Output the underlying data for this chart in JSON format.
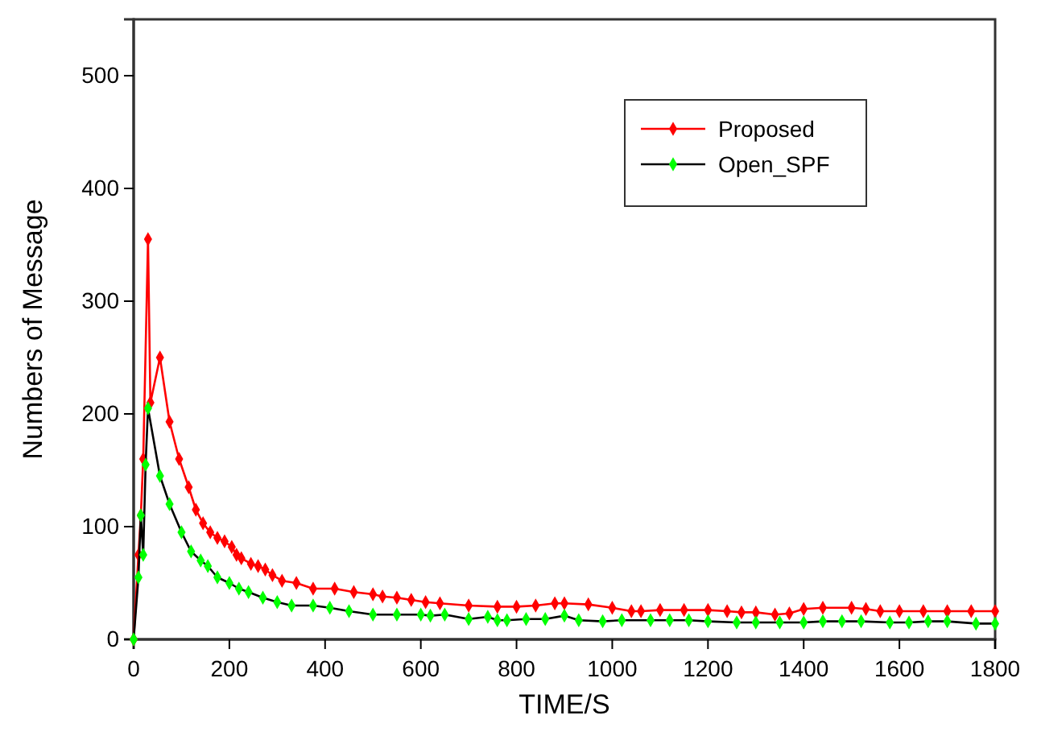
{
  "chart_data": {
    "type": "line",
    "xlabel": "TIME/S",
    "ylabel": "Numbers of Message",
    "xlim": [
      0,
      1800
    ],
    "xticks": [
      0,
      200,
      400,
      600,
      800,
      1000,
      1200,
      1400,
      1600,
      1800
    ],
    "ylim": [
      0,
      550
    ],
    "yticks": [
      0,
      100,
      200,
      300,
      400,
      500
    ],
    "grid": false,
    "legend": "top right",
    "marker": "diamond",
    "line_style": "solid",
    "series": [
      {
        "name": "Proposed",
        "color": "#ff0000",
        "x": [
          0,
          10,
          15,
          20,
          30,
          35,
          55,
          75,
          95,
          115,
          130,
          145,
          160,
          175,
          190,
          205,
          215,
          225,
          245,
          260,
          275,
          290,
          310,
          340,
          375,
          420,
          460,
          500,
          520,
          550,
          580,
          610,
          640,
          700,
          760,
          800,
          840,
          880,
          900,
          950,
          1000,
          1040,
          1060,
          1100,
          1150,
          1200,
          1240,
          1270,
          1300,
          1340,
          1370,
          1400,
          1440,
          1500,
          1530,
          1560,
          1600,
          1650,
          1700,
          1750,
          1800
        ],
        "values": [
          0,
          75,
          110,
          160,
          355,
          210,
          250,
          193,
          160,
          135,
          115,
          103,
          95,
          90,
          87,
          82,
          75,
          72,
          67,
          65,
          62,
          57,
          52,
          50,
          45,
          45,
          42,
          40,
          38,
          37,
          35,
          33,
          32,
          30,
          29,
          29,
          30,
          32,
          32,
          31,
          28,
          25,
          25,
          26,
          26,
          26,
          25,
          24,
          24,
          22,
          23,
          27,
          28,
          28,
          27,
          25,
          25,
          25,
          25,
          25,
          25
        ]
      },
      {
        "name": "Open_SPF",
        "color": "#00ff00",
        "x": [
          0,
          10,
          15,
          20,
          25,
          30,
          55,
          75,
          100,
          120,
          140,
          155,
          175,
          200,
          220,
          240,
          270,
          300,
          330,
          375,
          410,
          450,
          500,
          550,
          600,
          620,
          650,
          700,
          740,
          760,
          780,
          820,
          860,
          900,
          930,
          980,
          1020,
          1080,
          1120,
          1160,
          1200,
          1260,
          1300,
          1350,
          1400,
          1440,
          1480,
          1520,
          1580,
          1620,
          1660,
          1700,
          1760,
          1800
        ],
        "values": [
          0,
          55,
          110,
          75,
          155,
          205,
          145,
          120,
          95,
          78,
          70,
          65,
          55,
          50,
          45,
          42,
          37,
          33,
          30,
          30,
          28,
          25,
          22,
          22,
          22,
          21,
          22,
          18,
          20,
          17,
          17,
          18,
          18,
          21,
          17,
          16,
          17,
          17,
          17,
          17,
          16,
          15,
          15,
          15,
          15,
          16,
          16,
          16,
          15,
          15,
          16,
          16,
          14,
          14
        ]
      }
    ]
  }
}
